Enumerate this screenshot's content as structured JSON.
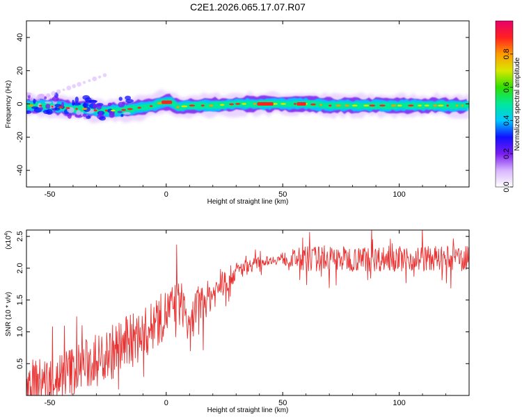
{
  "title": "C2E1.2026.065.17.07.R07",
  "chart_data": [
    {
      "type": "heatmap",
      "xlabel": "Height of straight line (km)",
      "ylabel": "Frequency (Hz)",
      "xlim": [
        -60,
        130
      ],
      "ylim": [
        -50,
        50
      ],
      "xticks": [
        "-50",
        "0",
        "50",
        "100"
      ],
      "xtick_values": [
        -50,
        0,
        50,
        100
      ],
      "yticks": [
        "40",
        "20",
        "0",
        "-20",
        "-40"
      ],
      "ytick_values": [
        40,
        20,
        0,
        -20,
        -40
      ],
      "colorbar": {
        "label": "Normalized spectral amplitude",
        "range": [
          0,
          1
        ],
        "ticks": [
          "0.0",
          "0.2",
          "0.4",
          "0.6",
          "0.8"
        ],
        "tick_values": [
          0.0,
          0.2,
          0.4,
          0.6,
          0.8
        ],
        "colormap": [
          "#ffffff",
          "#d8b4ff",
          "#7a1cf0",
          "#1010ff",
          "#00c8ff",
          "#00e89a",
          "#30e000",
          "#d8e800",
          "#ff9a00",
          "#ff2020",
          "#e8006a"
        ]
      },
      "ridge": {
        "x": [
          -60,
          -55,
          -50,
          -45,
          -40,
          -35,
          -30,
          -25,
          -20,
          -15,
          -10,
          -5,
          -2,
          2,
          5,
          10,
          20,
          30,
          40,
          50,
          60,
          70,
          80,
          90,
          100,
          110,
          120,
          130
        ],
        "freq": [
          -1,
          -1,
          -1.5,
          -2,
          -3,
          -3,
          -4,
          -4,
          -4,
          -3,
          -2,
          -1,
          1,
          1,
          -2,
          -1,
          -1,
          0,
          0,
          0,
          0,
          -1,
          -1,
          -1,
          -1,
          -1,
          -1,
          -1
        ]
      }
    },
    {
      "type": "line",
      "xlabel": "Height of straight line (km)",
      "ylabel": "SNR (10 * v/v)",
      "scale_note": "(x10",
      "scale_exp": "4",
      "scale_close": ")",
      "xlim": [
        -60,
        130
      ],
      "ylim": [
        0,
        2.6
      ],
      "xticks": [
        "-50",
        "0",
        "50",
        "100"
      ],
      "xtick_values": [
        -50,
        0,
        50,
        100
      ],
      "yticks": [
        "0.5",
        "1.0",
        "1.5",
        "2.0",
        "2.5"
      ],
      "ytick_values": [
        0.5,
        1.0,
        1.5,
        2.0,
        2.5
      ],
      "color": "#e83030",
      "trend": {
        "x": [
          -60,
          -50,
          -40,
          -30,
          -20,
          -10,
          -5,
          0,
          5,
          8,
          10,
          12,
          20,
          30,
          40,
          50,
          60,
          80,
          100,
          130
        ],
        "y": [
          0.2,
          0.25,
          0.4,
          0.55,
          0.75,
          0.95,
          1.1,
          1.3,
          1.45,
          1.4,
          0.85,
          1.35,
          1.6,
          1.95,
          2.1,
          2.15,
          2.15,
          2.15,
          2.15,
          2.15
        ]
      },
      "amplitude": {
        "x": [
          -60,
          -20,
          10,
          30,
          45,
          60,
          130
        ],
        "y": [
          0.35,
          0.45,
          0.35,
          0.15,
          0.06,
          0.2,
          0.2
        ]
      },
      "samples": 900
    }
  ]
}
